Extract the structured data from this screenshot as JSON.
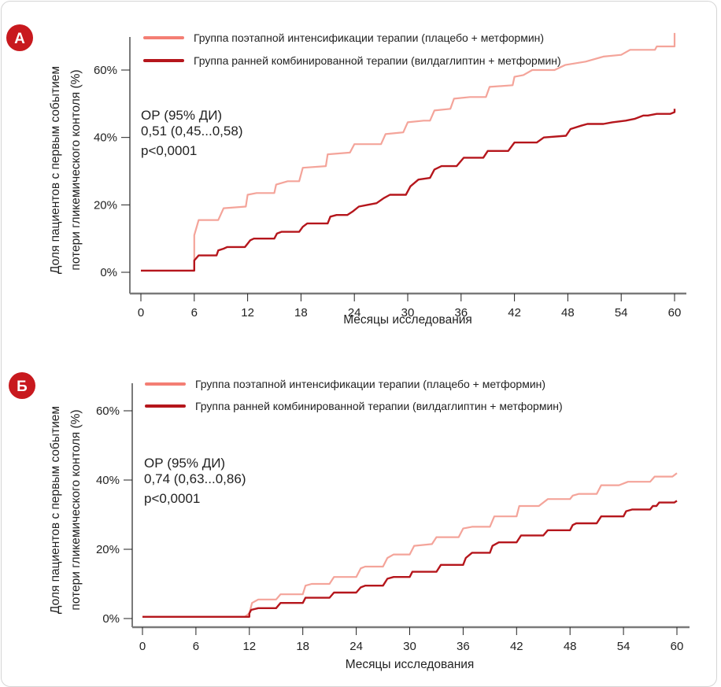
{
  "colors": {
    "badge": "#c8191e",
    "placebo_line": "#f4a49a",
    "placebo_legend": "#f47e74",
    "combo_line": "#b5161c",
    "axis": "#7a7a7a",
    "tick": "#222222"
  },
  "chart_data": [
    {
      "type": "line",
      "panel_label": "А",
      "title": "",
      "xlabel": "Месяцы исследования",
      "ylabel_lines": [
        "Доля пациентов с первым событием",
        "потери гликемического контоля (%)"
      ],
      "xlim": [
        0,
        60
      ],
      "ylim": [
        0,
        60
      ],
      "x_ticks": [
        0,
        6,
        12,
        18,
        24,
        30,
        36,
        42,
        48,
        54,
        60
      ],
      "x_tick_labels": [
        "0",
        "6",
        "12",
        "18",
        "24",
        "30",
        "36",
        "42",
        "48",
        "54",
        "60"
      ],
      "y_ticks": [
        0,
        20,
        40,
        60
      ],
      "y_tick_labels": [
        "0%",
        "20%",
        "40%",
        "60%"
      ],
      "grid": false,
      "legend_position": "top",
      "annotation": [
        "ОР (95% ДИ)",
        "0,51 (0,45...0,58)",
        "p<0,0001"
      ],
      "series": [
        {
          "name": "Группа поэтапной интенсификации терапии (плацебо + метформин)",
          "color_key": "placebo_line",
          "x": [
            0,
            6,
            6,
            6.5,
            8.7,
            9.3,
            11.8,
            12,
            13,
            15,
            15.2,
            16.5,
            17.8,
            18.2,
            20.8,
            21,
            23.5,
            24,
            27,
            27.5,
            29.5,
            30,
            31.8,
            32.5,
            33,
            34.8,
            35.2,
            37,
            38.8,
            39.2,
            41.8,
            42,
            43,
            44,
            46.5,
            47.7,
            50,
            52,
            54,
            55,
            57.8,
            58,
            60,
            60
          ],
          "y": [
            0.5,
            0.5,
            11,
            15.5,
            15.5,
            19,
            19.5,
            23,
            23.5,
            23.5,
            26,
            27,
            27,
            31,
            31.5,
            35,
            35.5,
            38,
            38,
            41,
            41.5,
            44.5,
            45,
            45,
            48,
            48.5,
            51.5,
            52,
            52,
            55,
            55.5,
            58,
            58.5,
            60,
            60,
            61.5,
            62.5,
            64,
            64.5,
            66,
            66,
            67,
            67,
            71
          ]
        },
        {
          "name": "Группа ранней комбинированной терапии (вилдаглиптин + метформин)",
          "color_key": "combo_line",
          "x": [
            0,
            6,
            6,
            6.5,
            8.5,
            8.7,
            9.3,
            9.7,
            11.7,
            12,
            12.3,
            12.7,
            15,
            15.3,
            15.8,
            17.8,
            18.2,
            18.7,
            21,
            21.3,
            22,
            23.2,
            23.8,
            24.5,
            25.5,
            26.5,
            27.3,
            28,
            29.8,
            30.3,
            31.2,
            32.5,
            33,
            33.8,
            35.5,
            36.3,
            38.5,
            39,
            41.3,
            42,
            44.5,
            45.3,
            47.8,
            48.3,
            49.5,
            50.2,
            52,
            53,
            54.5,
            55.5,
            56.5,
            57,
            58,
            59.5,
            60,
            60
          ],
          "y": [
            0.5,
            0.5,
            3.5,
            5,
            5,
            6.5,
            7,
            7.5,
            7.5,
            8.5,
            9.5,
            10,
            10,
            11.5,
            12,
            12,
            13.5,
            14.5,
            14.5,
            16.5,
            17,
            17,
            18,
            19.5,
            20,
            20.5,
            22,
            23,
            23,
            25.5,
            27.5,
            28,
            30.5,
            31.5,
            31.5,
            34,
            34,
            36,
            36,
            38.5,
            38.5,
            40,
            40.5,
            42.5,
            43.5,
            44,
            44,
            44.5,
            45,
            45.5,
            46.5,
            46.5,
            47,
            47,
            47.5,
            48.5
          ]
        }
      ]
    },
    {
      "type": "line",
      "panel_label": "Б",
      "title": "",
      "xlabel": "Месяцы исследования",
      "ylabel_lines": [
        "Доля пациентов с первым событием",
        "потери гликемического контоля (%)"
      ],
      "xlim": [
        0,
        60
      ],
      "ylim": [
        0,
        60
      ],
      "x_ticks": [
        0,
        6,
        12,
        18,
        24,
        30,
        36,
        42,
        48,
        54,
        60
      ],
      "x_tick_labels": [
        "0",
        "6",
        "12",
        "18",
        "24",
        "30",
        "36",
        "42",
        "48",
        "54",
        "60"
      ],
      "y_ticks": [
        0,
        20,
        40,
        60
      ],
      "y_tick_labels": [
        "0%",
        "20%",
        "40%",
        "60%"
      ],
      "grid": false,
      "legend_position": "top",
      "annotation": [
        "ОР (95% ДИ)",
        "0,74 (0,63...0,86)",
        "p<0,0001"
      ],
      "series": [
        {
          "name": "Группа поэтапной интенсификации терапии (плацебо + метформин)",
          "color_key": "placebo_line",
          "x": [
            0,
            11.5,
            12,
            12.3,
            13,
            15,
            15.5,
            18,
            18.3,
            19,
            21,
            21.5,
            24,
            24.5,
            25,
            27,
            27.5,
            28.2,
            30,
            30.5,
            32.5,
            33,
            35.5,
            36,
            37,
            39,
            39.5,
            42,
            42.3,
            44.5,
            45.5,
            48,
            48.3,
            49,
            51,
            51.5,
            53.5,
            54.5,
            57,
            57.5,
            59.5,
            60
          ],
          "y": [
            0.5,
            0.5,
            1.5,
            4.5,
            5.5,
            5.5,
            7,
            7,
            9.5,
            10,
            10,
            12,
            12,
            14.5,
            15,
            15,
            17.5,
            18.5,
            18.5,
            21,
            21.5,
            23.5,
            23.5,
            26,
            26.5,
            26.5,
            29.5,
            29.5,
            32.5,
            32.5,
            34.5,
            34.5,
            35.5,
            36,
            36,
            38.5,
            38.5,
            39.5,
            39.5,
            41,
            41,
            42
          ]
        },
        {
          "name": "Группа ранней комбинированной терапии (вилдаглиптин + метформин)",
          "color_key": "combo_line",
          "x": [
            0,
            12,
            12,
            12.2,
            13,
            15,
            15.5,
            18,
            18.3,
            21,
            21.5,
            24,
            24.5,
            25,
            27,
            27.5,
            28.2,
            30,
            30.3,
            33,
            33.5,
            36,
            36.3,
            37,
            39,
            39.3,
            40,
            42,
            42.5,
            45,
            45.5,
            48,
            48.3,
            48.7,
            51,
            51.5,
            54,
            54.3,
            55,
            57,
            57.3,
            57.7,
            58,
            59.7,
            60
          ],
          "y": [
            0.5,
            0.5,
            1.5,
            2.5,
            3,
            3,
            4.5,
            4.5,
            6,
            6,
            7.5,
            7.5,
            9,
            9.5,
            9.5,
            11.5,
            12,
            12,
            13.5,
            13.5,
            15.5,
            15.5,
            17.5,
            19,
            19,
            21,
            22,
            22,
            24,
            24,
            25.5,
            25.5,
            27,
            27.5,
            27.5,
            29.5,
            29.5,
            31,
            31.5,
            31.5,
            32.5,
            32.5,
            33.5,
            33.5,
            34
          ]
        }
      ]
    }
  ]
}
